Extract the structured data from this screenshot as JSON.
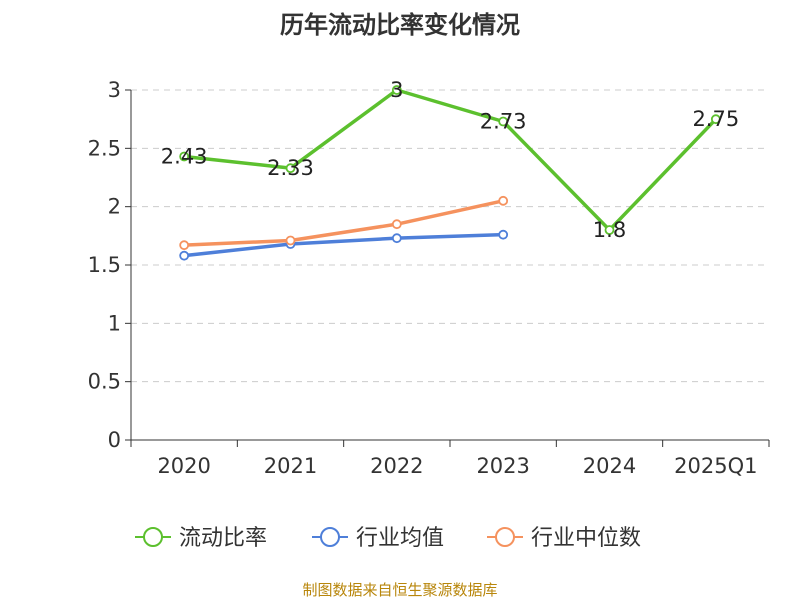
{
  "chart_data": {
    "type": "line",
    "title": "历年流动比率变化情况",
    "categories": [
      "2020",
      "2021",
      "2022",
      "2023",
      "2024",
      "2025Q1"
    ],
    "ylim": [
      0,
      3
    ],
    "yticks": [
      "0",
      "0.5",
      "1",
      "1.5",
      "2",
      "2.5",
      "3"
    ],
    "grid": true,
    "legend_position": "bottom",
    "series": [
      {
        "name": "流动比率",
        "color": "#5cc02e",
        "values": [
          2.43,
          2.33,
          3,
          2.73,
          1.8,
          2.75
        ],
        "labels": [
          "2.43",
          "2.33",
          "3",
          "2.73",
          "1.8",
          "2.75"
        ]
      },
      {
        "name": "行业均值",
        "color": "#4e7fd9",
        "values": [
          1.58,
          1.68,
          1.73,
          1.76,
          null,
          null
        ]
      },
      {
        "name": "行业中位数",
        "color": "#f5925e",
        "values": [
          1.67,
          1.71,
          1.85,
          2.05,
          null,
          null
        ]
      }
    ],
    "source": "制图数据来自恒生聚源数据库"
  }
}
